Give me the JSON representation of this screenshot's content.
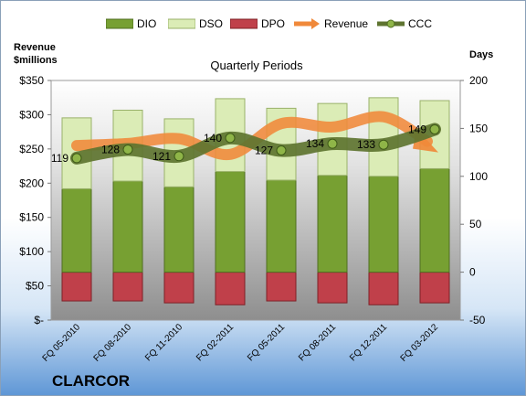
{
  "company": "CLARCOR",
  "colors": {
    "dio": "#77a032",
    "dso": "#dbecb6",
    "dpo": "#c0404a",
    "revenue": "#f0893a",
    "ccc": "#5e7430"
  },
  "chart_data": {
    "type": "bar",
    "title": "Quarterly Periods",
    "ylabel_left": "Revenue\n$millions",
    "ylabel_right": "Days",
    "categories": [
      "FQ 05-2010",
      "FQ 08-2010",
      "FQ 11-2010",
      "FQ 02-2011",
      "FQ 05-2011",
      "FQ 08-2011",
      "FQ 12-2011",
      "FQ 03-2012"
    ],
    "legend": [
      {
        "name": "DIO",
        "icon": "bar"
      },
      {
        "name": "DSO",
        "icon": "bar"
      },
      {
        "name": "DPO",
        "icon": "bar"
      },
      {
        "name": "Revenue",
        "icon": "arrow"
      },
      {
        "name": "CCC",
        "icon": "line-marker"
      }
    ],
    "left_axis": {
      "min": 0,
      "max": 350,
      "step": 50,
      "tick_labels": [
        "$-",
        "$50",
        "$100",
        "$150",
        "$200",
        "$250",
        "$300",
        "$350"
      ]
    },
    "right_axis": {
      "min": -50,
      "max": 200,
      "step": 50,
      "tick_labels": [
        "-50",
        "0",
        "50",
        "100",
        "150",
        "200"
      ]
    },
    "grid": false,
    "series": [
      {
        "name": "DIO",
        "axis": "right",
        "values": [
          87,
          95,
          89,
          105,
          96,
          101,
          100,
          108
        ]
      },
      {
        "name": "DSO",
        "axis": "right",
        "values": [
          74,
          74,
          71,
          76,
          75,
          75,
          82,
          71
        ]
      },
      {
        "name": "DPO",
        "axis": "right",
        "values": [
          -30,
          -30,
          -32,
          -34,
          -30,
          -32,
          -34,
          -32
        ]
      },
      {
        "name": "Revenue",
        "axis": "left",
        "values": [
          255,
          258,
          265,
          242,
          287,
          282,
          297,
          253
        ]
      },
      {
        "name": "CCC",
        "axis": "right",
        "values": [
          119,
          128,
          121,
          140,
          127,
          134,
          133,
          149
        ],
        "labels": [
          "119",
          "128",
          "121",
          "140",
          "127",
          "134",
          "133",
          "149"
        ]
      }
    ]
  }
}
